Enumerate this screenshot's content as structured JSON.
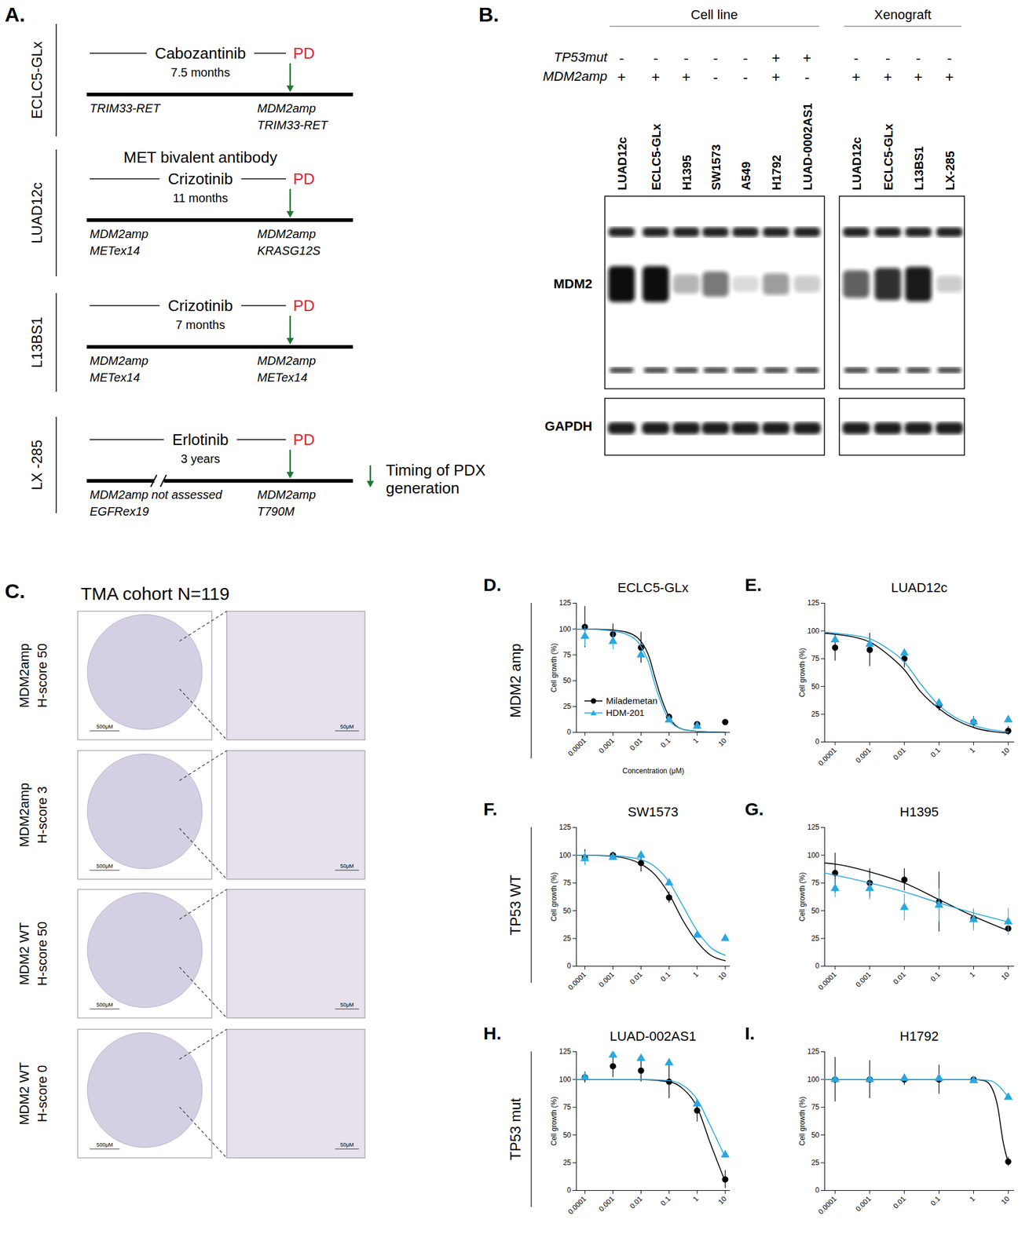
{
  "panel_a": {
    "label": "A.",
    "pd": "PD",
    "legend_lines": [
      "Timing of PDX",
      "generation"
    ],
    "blocks": [
      {
        "name": "ECLC5-GLx",
        "above": null,
        "drug": "Cabozantinib",
        "duration": "7.5 months",
        "start": [
          "TRIM33-RET"
        ],
        "end": [
          "MDM2amp",
          "TRIM33-RET"
        ],
        "break": false
      },
      {
        "name": "LUAD12c",
        "above": "MET bivalent antibody",
        "drug": "Crizotinib",
        "duration": "11 months",
        "start": [
          "MDM2amp",
          "METex14"
        ],
        "end": [
          "MDM2amp",
          "KRASG12S"
        ],
        "break": false
      },
      {
        "name": "L13BS1",
        "above": null,
        "drug": "Crizotinib",
        "duration": "7 months",
        "start": [
          "MDM2amp",
          "METex14"
        ],
        "end": [
          "MDM2amp",
          "METex14"
        ],
        "break": false
      },
      {
        "name": "LX -285",
        "above": null,
        "drug": "Erlotinib",
        "duration": "3 years",
        "start": [
          "MDM2amp not assessed",
          "EGFRex19"
        ],
        "end": [
          "MDM2amp",
          "T790M"
        ],
        "break": true
      }
    ]
  },
  "panel_b": {
    "label": "B.",
    "row_labels": [
      "TP53mut",
      "MDM2amp"
    ],
    "blots": [
      "MDM2",
      "GAPDH"
    ],
    "groups": [
      "Cell line",
      "Xenograft"
    ],
    "lanes": [
      {
        "label": "LUAD12c",
        "group": "Cell line",
        "tp53mut": "-",
        "mdm2amp": "+",
        "mdm2_band": 1.0
      },
      {
        "label": "ECLC5-GLx",
        "group": "Cell line",
        "tp53mut": "-",
        "mdm2amp": "+",
        "mdm2_band": 1.0
      },
      {
        "label": "H1395",
        "group": "Cell line",
        "tp53mut": "-",
        "mdm2amp": "+",
        "mdm2_band": 0.3
      },
      {
        "label": "SW1573",
        "group": "Cell line",
        "tp53mut": "-",
        "mdm2amp": "-",
        "mdm2_band": 0.55
      },
      {
        "label": "A549",
        "group": "Cell line",
        "tp53mut": "-",
        "mdm2amp": "-",
        "mdm2_band": 0.15
      },
      {
        "label": "H1792",
        "group": "Cell line",
        "tp53mut": "+",
        "mdm2amp": "+",
        "mdm2_band": 0.4
      },
      {
        "label": "LUAD-0002AS1",
        "group": "Cell line",
        "tp53mut": "+",
        "mdm2amp": "-",
        "mdm2_band": 0.2
      },
      {
        "label": "LUAD12c",
        "group": "Xenograft",
        "tp53mut": "-",
        "mdm2amp": "+",
        "mdm2_band": 0.65
      },
      {
        "label": "ECLC5-GLx",
        "group": "Xenograft",
        "tp53mut": "-",
        "mdm2amp": "+",
        "mdm2_band": 0.85
      },
      {
        "label": "L13BS1",
        "group": "Xenograft",
        "tp53mut": "-",
        "mdm2amp": "+",
        "mdm2_band": 0.95
      },
      {
        "label": "LX-285",
        "group": "Xenograft",
        "tp53mut": "-",
        "mdm2amp": "+",
        "mdm2_band": 0.2
      }
    ]
  },
  "panel_c": {
    "label": "C.",
    "title": "TMA cohort N=119",
    "scale_left": "500μM",
    "scale_right": "50μM",
    "rows": [
      {
        "lines": [
          "MDM2amp",
          "H-score 50"
        ]
      },
      {
        "lines": [
          "MDM2amp",
          "H-score 3"
        ]
      },
      {
        "lines": [
          "MDM2 WT",
          "H-score 50"
        ]
      },
      {
        "lines": [
          "MDM2 WT",
          "H-score 0"
        ]
      }
    ]
  },
  "row_labels": [
    "MDM2 amp",
    "TP53 WT",
    "TP53 mut"
  ],
  "chart_data": [
    {
      "type": "scatter",
      "panel": "D.",
      "title": "ECLC5-GLx",
      "x_label": "Concentration (μM)",
      "y_label": "Cell growth (%)",
      "log": "x",
      "legend": "bottom-left",
      "xlim": [
        5e-05,
        15
      ],
      "xticks": [
        0.0001,
        0.001,
        0.01,
        0.1,
        1,
        10
      ],
      "ylim": [
        0,
        125
      ],
      "yticks": [
        0,
        25,
        50,
        75,
        100,
        125
      ],
      "x": [
        0.0001,
        0.001,
        0.01,
        0.1,
        1,
        10
      ],
      "series": [
        {
          "name": "Milademetan",
          "color": "#000000",
          "marker": "circle",
          "values": [
            102,
            95,
            82,
            15,
            8,
            10
          ],
          "errors": [
            20,
            10,
            15,
            3,
            2,
            null
          ],
          "fit_x": [
            5e-05,
            0.0001,
            0.001,
            0.003,
            0.01,
            0.02,
            0.03,
            0.05,
            0.1,
            0.3,
            1,
            10
          ],
          "fit_values": [
            100,
            100,
            99,
            97,
            88,
            72,
            55,
            35,
            15,
            3,
            1,
            0
          ]
        },
        {
          "name": "HDM-201",
          "color": "#29a8e0",
          "marker": "triangle",
          "values": [
            93,
            88,
            75,
            12,
            6,
            null
          ],
          "errors": [
            10,
            8,
            null,
            null,
            null,
            null
          ],
          "fit_x": [
            5e-05,
            0.0001,
            0.001,
            0.003,
            0.01,
            0.02,
            0.03,
            0.05,
            0.1,
            0.3,
            1,
            10
          ],
          "fit_values": [
            100,
            100,
            98,
            95,
            83,
            65,
            48,
            30,
            12,
            3,
            1,
            0
          ]
        }
      ]
    },
    {
      "type": "scatter",
      "panel": "E.",
      "title": "LUAD12c",
      "x_label": null,
      "y_label": "Cell growth (%)",
      "log": "x",
      "xlim": [
        5e-05,
        15
      ],
      "xticks": [
        0.0001,
        0.001,
        0.01,
        0.1,
        1,
        10
      ],
      "ylim": [
        0,
        125
      ],
      "yticks": [
        0,
        25,
        50,
        75,
        100,
        125
      ],
      "x": [
        0.0001,
        0.001,
        0.01,
        0.1,
        1,
        10
      ],
      "series": [
        {
          "color": "#000000",
          "marker": "circle",
          "values": [
            85,
            83,
            75,
            33,
            18,
            10
          ],
          "errors": [
            12,
            15,
            8,
            5,
            5,
            4
          ],
          "fit_x": [
            5e-05,
            0.0001,
            0.001,
            0.003,
            0.01,
            0.03,
            0.1,
            0.3,
            1,
            10
          ],
          "fit_values": [
            98,
            97,
            90,
            80,
            65,
            45,
            30,
            20,
            13,
            8
          ]
        },
        {
          "color": "#29a8e0",
          "marker": "triangle",
          "values": [
            92,
            88,
            80,
            35,
            18,
            20
          ],
          "errors": [
            null,
            null,
            null,
            null,
            null,
            null
          ],
          "fit_x": [
            5e-05,
            0.0001,
            0.001,
            0.003,
            0.01,
            0.03,
            0.1,
            0.3,
            1,
            10
          ],
          "fit_values": [
            99,
            98,
            93,
            85,
            72,
            52,
            33,
            22,
            15,
            9
          ]
        }
      ]
    },
    {
      "type": "scatter",
      "panel": "F.",
      "title": "SW1573",
      "x_label": null,
      "y_label": "Cell growth (%)",
      "log": "x",
      "xlim": [
        5e-05,
        15
      ],
      "xticks": [
        0.0001,
        0.001,
        0.01,
        0.1,
        1,
        10
      ],
      "ylim": [
        0,
        125
      ],
      "yticks": [
        0,
        25,
        50,
        75,
        100,
        125
      ],
      "x": [
        0.0001,
        0.001,
        0.01,
        0.1,
        1,
        10
      ],
      "series": [
        {
          "color": "#000000",
          "marker": "circle",
          "values": [
            98,
            100,
            93,
            62,
            null,
            null
          ],
          "errors": [
            7,
            3,
            8,
            5,
            null,
            null
          ],
          "fit_x": [
            5e-05,
            0.0001,
            0.001,
            0.01,
            0.03,
            0.1,
            0.3,
            1,
            3,
            10
          ],
          "fit_values": [
            100,
            100,
            99,
            92,
            83,
            65,
            42,
            22,
            10,
            5
          ]
        },
        {
          "color": "#29a8e0",
          "marker": "triangle",
          "values": [
            97,
            98,
            100,
            75,
            28,
            25
          ],
          "errors": [
            6,
            null,
            null,
            null,
            null,
            null
          ],
          "fit_x": [
            5e-05,
            0.0001,
            0.001,
            0.01,
            0.03,
            0.1,
            0.3,
            1,
            3,
            10
          ],
          "fit_values": [
            100,
            100,
            99.5,
            96,
            90,
            76,
            55,
            32,
            17,
            10
          ]
        }
      ]
    },
    {
      "type": "scatter",
      "panel": "G.",
      "title": "H1395",
      "x_label": null,
      "y_label": "Cell growth (%)",
      "log": "x",
      "xlim": [
        5e-05,
        15
      ],
      "xticks": [
        0.0001,
        0.001,
        0.01,
        0.1,
        1,
        10
      ],
      "ylim": [
        0,
        125
      ],
      "yticks": [
        0,
        25,
        50,
        75,
        100,
        125
      ],
      "x": [
        0.0001,
        0.001,
        0.01,
        0.1,
        1,
        10
      ],
      "series": [
        {
          "color": "#000000",
          "marker": "circle",
          "values": [
            84,
            75,
            78,
            58,
            43,
            34
          ],
          "errors": [
            18,
            13,
            10,
            27,
            8,
            null
          ],
          "fit_x": [
            5e-05,
            0.0001,
            0.001,
            0.01,
            0.1,
            1,
            10
          ],
          "fit_values": [
            93,
            92,
            85,
            75,
            60,
            45,
            32
          ]
        },
        {
          "color": "#29a8e0",
          "marker": "triangle",
          "values": [
            70,
            70,
            53,
            55,
            42,
            40
          ],
          "errors": [
            8,
            10,
            12,
            15,
            10,
            12
          ],
          "fit_x": [
            5e-05,
            0.0001,
            0.001,
            0.01,
            0.1,
            1,
            10
          ],
          "fit_values": [
            84,
            82,
            75,
            67,
            57,
            48,
            40
          ]
        }
      ]
    },
    {
      "type": "scatter",
      "panel": "H.",
      "title": "LUAD-002AS1",
      "x_label": null,
      "y_label": "Cell growth (%)",
      "log": "x",
      "xlim": [
        5e-05,
        15
      ],
      "xticks": [
        0.0001,
        0.001,
        0.01,
        0.1,
        1,
        10
      ],
      "ylim": [
        0,
        125
      ],
      "yticks": [
        0,
        25,
        50,
        75,
        100,
        125
      ],
      "x": [
        0.0001,
        0.001,
        0.01,
        0.1,
        1,
        10
      ],
      "series": [
        {
          "color": "#000000",
          "marker": "circle",
          "values": [
            102,
            112,
            108,
            98,
            72,
            10
          ],
          "errors": [
            5,
            10,
            10,
            15,
            10,
            8
          ],
          "fit_x": [
            5e-05,
            0.0001,
            0.01,
            0.1,
            0.3,
            1,
            3,
            10
          ],
          "fit_values": [
            100,
            100,
            100,
            98,
            92,
            75,
            42,
            8
          ]
        },
        {
          "color": "#29a8e0",
          "marker": "triangle",
          "values": [
            102,
            122,
            119,
            115,
            78,
            32
          ],
          "errors": [
            null,
            null,
            null,
            null,
            null,
            null
          ],
          "fit_x": [
            5e-05,
            0.0001,
            0.01,
            0.1,
            0.3,
            1,
            3,
            10
          ],
          "fit_values": [
            100,
            100,
            100,
            99,
            95,
            82,
            58,
            30
          ]
        }
      ]
    },
    {
      "type": "scatter",
      "panel": "I.",
      "title": "H1792",
      "x_label": null,
      "y_label": "Cell growth (%)",
      "log": "x",
      "xlim": [
        5e-05,
        15
      ],
      "xticks": [
        0.0001,
        0.001,
        0.01,
        0.1,
        1,
        10
      ],
      "ylim": [
        0,
        125
      ],
      "yticks": [
        0,
        25,
        50,
        75,
        100,
        125
      ],
      "x": [
        0.0001,
        0.001,
        0.01,
        0.1,
        1,
        10
      ],
      "series": [
        {
          "color": "#000000",
          "marker": "circle",
          "values": [
            100,
            100,
            100,
            100,
            100,
            26
          ],
          "errors": [
            20,
            17,
            5,
            13,
            null,
            4
          ],
          "fit_x": [
            5e-05,
            0.0001,
            1,
            2,
            3,
            5,
            7,
            10
          ],
          "fit_values": [
            100,
            100,
            100,
            99,
            95,
            75,
            45,
            25
          ]
        },
        {
          "color": "#29a8e0",
          "marker": "triangle",
          "values": [
            100,
            100,
            101,
            101,
            99,
            84
          ],
          "errors": [
            null,
            null,
            null,
            null,
            null,
            null
          ],
          "fit_x": [
            5e-05,
            0.0001,
            1,
            3,
            5,
            10
          ],
          "fit_values": [
            100,
            100,
            100,
            99,
            95,
            84
          ]
        }
      ]
    }
  ]
}
